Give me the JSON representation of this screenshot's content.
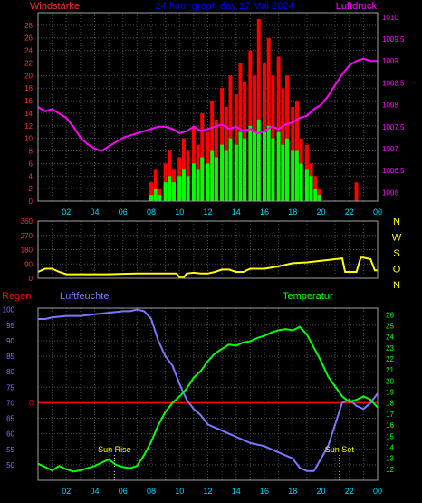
{
  "header": {
    "left_label": "Windstärke",
    "title": "24 hour graph day 17 Mai 2024",
    "right_label": "Luftdruck"
  },
  "colors": {
    "background": "#000000",
    "grid": "#4a4a4a",
    "frame": "#a0a0a0",
    "wind_gust": "#ff0000",
    "wind_mean": "#00ff00",
    "pressure": "#ff00ff",
    "direction": "#ffff00",
    "humidity": "#7878ff",
    "temperature": "#00ff00",
    "rain": "#ff0000",
    "sun": "#ffff00",
    "left_axis": "#ff3030",
    "right_axis_pressure": "#ff00ff",
    "right_axis_temp": "#00ff00",
    "humidity_axis": "#7878ff",
    "time_axis": "#00d8ff",
    "title": "#0000ff"
  },
  "chart_data": [
    {
      "type": "bar",
      "name": "wind-pressure",
      "x_range": [
        0,
        24
      ],
      "x_ticks": [
        "02",
        "04",
        "06",
        "08",
        "10",
        "12",
        "14",
        "16",
        "18",
        "20",
        "22",
        "00"
      ],
      "y_left_label": "Windstärke",
      "y_left_range": [
        0,
        30
      ],
      "y_left_ticks": [
        "0",
        "2",
        "4",
        "6",
        "8",
        "10",
        "12",
        "14",
        "16",
        "18",
        "20",
        "22",
        "24",
        "26",
        "28"
      ],
      "y_right_label": "Luftdruck",
      "y_right_range": [
        1005.8,
        1010.1
      ],
      "y_right_ticks": [
        "1006",
        "1006.5",
        "1007",
        "1007.5",
        "1008",
        "1008.5",
        "1009",
        "1009.5",
        "1010"
      ],
      "gust_points": [
        [
          7.7,
          0
        ],
        [
          8.0,
          3
        ],
        [
          8.3,
          5
        ],
        [
          8.6,
          2
        ],
        [
          9.0,
          6
        ],
        [
          9.3,
          8
        ],
        [
          9.6,
          5
        ],
        [
          10.0,
          7
        ],
        [
          10.3,
          10
        ],
        [
          10.6,
          8
        ],
        [
          11.0,
          12
        ],
        [
          11.3,
          9
        ],
        [
          11.6,
          14
        ],
        [
          12.0,
          11
        ],
        [
          12.3,
          16
        ],
        [
          12.6,
          13
        ],
        [
          13.0,
          18
        ],
        [
          13.3,
          15
        ],
        [
          13.6,
          20
        ],
        [
          14.0,
          17
        ],
        [
          14.3,
          22
        ],
        [
          14.6,
          19
        ],
        [
          15.0,
          24
        ],
        [
          15.3,
          20
        ],
        [
          15.6,
          29
        ],
        [
          16.0,
          22
        ],
        [
          16.3,
          26
        ],
        [
          16.6,
          20
        ],
        [
          17.0,
          23
        ],
        [
          17.3,
          18
        ],
        [
          17.6,
          20
        ],
        [
          18.0,
          15
        ],
        [
          18.3,
          16
        ],
        [
          18.6,
          10
        ],
        [
          19.0,
          9
        ],
        [
          19.3,
          6
        ],
        [
          19.6,
          4
        ],
        [
          19.9,
          2
        ],
        [
          20.2,
          0
        ],
        [
          22.3,
          0
        ],
        [
          22.5,
          3
        ],
        [
          22.8,
          0
        ]
      ],
      "mean_points": [
        [
          7.7,
          0
        ],
        [
          8.0,
          1
        ],
        [
          8.3,
          2
        ],
        [
          8.6,
          1
        ],
        [
          9.0,
          3
        ],
        [
          9.3,
          4
        ],
        [
          9.6,
          3
        ],
        [
          10.0,
          4
        ],
        [
          10.3,
          5
        ],
        [
          10.6,
          4
        ],
        [
          11.0,
          6
        ],
        [
          11.3,
          5
        ],
        [
          11.6,
          7
        ],
        [
          12.0,
          6
        ],
        [
          12.3,
          8
        ],
        [
          12.6,
          7
        ],
        [
          13.0,
          9
        ],
        [
          13.3,
          8
        ],
        [
          13.6,
          10
        ],
        [
          14.0,
          9
        ],
        [
          14.3,
          11
        ],
        [
          14.6,
          10
        ],
        [
          15.0,
          12
        ],
        [
          15.3,
          11
        ],
        [
          15.6,
          13
        ],
        [
          16.0,
          11
        ],
        [
          16.3,
          12
        ],
        [
          16.6,
          10
        ],
        [
          17.0,
          11
        ],
        [
          17.3,
          9
        ],
        [
          17.6,
          10
        ],
        [
          18.0,
          8
        ],
        [
          18.3,
          8
        ],
        [
          18.6,
          6
        ],
        [
          19.0,
          5
        ],
        [
          19.3,
          4
        ],
        [
          19.6,
          2
        ],
        [
          19.9,
          1
        ],
        [
          20.2,
          0
        ]
      ],
      "pressure_points": [
        [
          0,
          1007.95
        ],
        [
          0.5,
          1007.85
        ],
        [
          1,
          1007.9
        ],
        [
          1.5,
          1007.8
        ],
        [
          2,
          1007.7
        ],
        [
          2.5,
          1007.5
        ],
        [
          3,
          1007.25
        ],
        [
          3.5,
          1007.1
        ],
        [
          4,
          1007.0
        ],
        [
          4.5,
          1006.95
        ],
        [
          5,
          1007.05
        ],
        [
          5.5,
          1007.15
        ],
        [
          6,
          1007.25
        ],
        [
          6.5,
          1007.3
        ],
        [
          7,
          1007.35
        ],
        [
          7.5,
          1007.4
        ],
        [
          8,
          1007.45
        ],
        [
          8.5,
          1007.5
        ],
        [
          9,
          1007.5
        ],
        [
          9.5,
          1007.45
        ],
        [
          10,
          1007.35
        ],
        [
          10.5,
          1007.4
        ],
        [
          11,
          1007.5
        ],
        [
          11.5,
          1007.4
        ],
        [
          12,
          1007.45
        ],
        [
          12.5,
          1007.5
        ],
        [
          13,
          1007.55
        ],
        [
          13.5,
          1007.45
        ],
        [
          14,
          1007.5
        ],
        [
          14.5,
          1007.4
        ],
        [
          15,
          1007.45
        ],
        [
          15.5,
          1007.35
        ],
        [
          16,
          1007.4
        ],
        [
          16.5,
          1007.5
        ],
        [
          17,
          1007.45
        ],
        [
          17.5,
          1007.55
        ],
        [
          18,
          1007.6
        ],
        [
          18.5,
          1007.7
        ],
        [
          19,
          1007.75
        ],
        [
          19.5,
          1007.9
        ],
        [
          20,
          1008.0
        ],
        [
          20.5,
          1008.2
        ],
        [
          21,
          1008.45
        ],
        [
          21.5,
          1008.7
        ],
        [
          22,
          1008.9
        ],
        [
          22.5,
          1009.0
        ],
        [
          23,
          1009.05
        ],
        [
          23.5,
          1009.0
        ],
        [
          24,
          1009.0
        ]
      ]
    },
    {
      "type": "line",
      "name": "wind-direction",
      "x_range": [
        0,
        24
      ],
      "y_range": [
        0,
        360
      ],
      "y_left_ticks": [
        "360",
        "270",
        "180",
        "90",
        "0"
      ],
      "y_right_ticks": [
        "N",
        "W",
        "S",
        "O",
        "N"
      ],
      "series_points": [
        [
          0,
          40
        ],
        [
          0.5,
          60
        ],
        [
          1,
          60
        ],
        [
          1.5,
          40
        ],
        [
          2,
          25
        ],
        [
          3,
          25
        ],
        [
          4,
          25
        ],
        [
          5,
          25
        ],
        [
          6,
          28
        ],
        [
          7,
          30
        ],
        [
          8,
          30
        ],
        [
          9,
          30
        ],
        [
          9.8,
          30
        ],
        [
          10,
          5
        ],
        [
          10.3,
          5
        ],
        [
          10.5,
          30
        ],
        [
          11,
          35
        ],
        [
          11.5,
          30
        ],
        [
          12,
          30
        ],
        [
          12.5,
          40
        ],
        [
          13,
          55
        ],
        [
          13.5,
          55
        ],
        [
          14,
          40
        ],
        [
          14.5,
          40
        ],
        [
          15,
          60
        ],
        [
          16,
          60
        ],
        [
          17,
          75
        ],
        [
          18,
          95
        ],
        [
          19,
          100
        ],
        [
          20,
          110
        ],
        [
          21,
          120
        ],
        [
          21.5,
          125
        ],
        [
          21.7,
          40
        ],
        [
          22,
          40
        ],
        [
          22.5,
          40
        ],
        [
          22.8,
          130
        ],
        [
          23,
          130
        ],
        [
          23.5,
          120
        ],
        [
          23.8,
          50
        ],
        [
          24,
          50
        ]
      ]
    },
    {
      "type": "line",
      "name": "humidity-temperature",
      "x_range": [
        0,
        24
      ],
      "x_ticks": [
        "02",
        "04",
        "06",
        "08",
        "10",
        "12",
        "14",
        "16",
        "18",
        "20",
        "22",
        "00"
      ],
      "y_left_label": "Regen",
      "y_left_zero_label": "0",
      "humidity_label": "Luftfeuchte",
      "humidity_range": [
        45,
        100.5
      ],
      "humidity_ticks": [
        "100",
        "95",
        "90",
        "85",
        "80",
        "75",
        "70",
        "65",
        "60",
        "55",
        "50"
      ],
      "temperature_label": "Temperatur",
      "temperature_range": [
        11,
        26.6
      ],
      "temperature_ticks": [
        "12",
        "13",
        "14",
        "15",
        "16",
        "17",
        "18",
        "19",
        "20",
        "21",
        "22",
        "23",
        "24",
        "25",
        "26"
      ],
      "rain_value": 0,
      "rain_level_humidity": 70,
      "sunrise_label": "Sun Rise",
      "sunrise_time": 5.4,
      "sunset_label": "Sun Set",
      "sunset_time": 21.3,
      "humidity_points": [
        [
          0,
          97
        ],
        [
          0.5,
          97
        ],
        [
          1,
          97.5
        ],
        [
          2,
          98
        ],
        [
          3,
          98
        ],
        [
          4,
          98.5
        ],
        [
          5,
          99
        ],
        [
          6,
          99.5
        ],
        [
          6.5,
          99.5
        ],
        [
          7,
          100
        ],
        [
          7.5,
          99.5
        ],
        [
          8,
          97
        ],
        [
          8.5,
          90
        ],
        [
          9,
          85
        ],
        [
          9.5,
          82
        ],
        [
          10,
          76
        ],
        [
          10.5,
          71
        ],
        [
          11,
          68
        ],
        [
          11.5,
          66
        ],
        [
          12,
          63
        ],
        [
          12.5,
          62
        ],
        [
          13,
          61
        ],
        [
          13.5,
          60
        ],
        [
          14,
          59
        ],
        [
          15,
          57
        ],
        [
          16,
          56
        ],
        [
          17,
          54
        ],
        [
          18,
          52
        ],
        [
          18.5,
          49
        ],
        [
          19,
          48
        ],
        [
          19.5,
          48
        ],
        [
          20,
          52
        ],
        [
          20.5,
          56
        ],
        [
          21,
          63
        ],
        [
          21.5,
          70
        ],
        [
          22,
          71
        ],
        [
          22.5,
          69
        ],
        [
          23,
          68
        ],
        [
          23.5,
          70
        ],
        [
          24,
          73
        ]
      ],
      "temperature_points": [
        [
          0,
          12.5
        ],
        [
          0.5,
          12.2
        ],
        [
          1,
          11.9
        ],
        [
          1.5,
          12.3
        ],
        [
          2,
          12.0
        ],
        [
          2.5,
          11.8
        ],
        [
          3,
          11.9
        ],
        [
          3.5,
          12.1
        ],
        [
          4,
          12.3
        ],
        [
          4.5,
          12.6
        ],
        [
          5,
          12.9
        ],
        [
          5.5,
          12.4
        ],
        [
          6,
          12.2
        ],
        [
          6.5,
          12.1
        ],
        [
          7,
          12.3
        ],
        [
          7.5,
          13.3
        ],
        [
          8,
          14.5
        ],
        [
          8.5,
          16.0
        ],
        [
          9,
          17.2
        ],
        [
          9.5,
          18.0
        ],
        [
          10,
          18.6
        ],
        [
          10.5,
          19.3
        ],
        [
          11,
          20.3
        ],
        [
          11.5,
          20.9
        ],
        [
          12,
          21.8
        ],
        [
          12.5,
          22.5
        ],
        [
          13,
          22.9
        ],
        [
          13.5,
          23.3
        ],
        [
          14,
          23.2
        ],
        [
          14.5,
          23.5
        ],
        [
          15,
          23.6
        ],
        [
          15.5,
          23.9
        ],
        [
          16,
          24.1
        ],
        [
          16.5,
          24.4
        ],
        [
          17,
          24.6
        ],
        [
          17.5,
          24.7
        ],
        [
          18,
          24.6
        ],
        [
          18.5,
          24.9
        ],
        [
          19,
          24.2
        ],
        [
          19.5,
          23.0
        ],
        [
          20,
          21.8
        ],
        [
          20.5,
          20.4
        ],
        [
          21,
          19.5
        ],
        [
          21.5,
          18.6
        ],
        [
          22,
          18.1
        ],
        [
          22.5,
          18.3
        ],
        [
          23,
          18.6
        ],
        [
          23.5,
          18.3
        ],
        [
          24,
          17.6
        ]
      ]
    }
  ]
}
